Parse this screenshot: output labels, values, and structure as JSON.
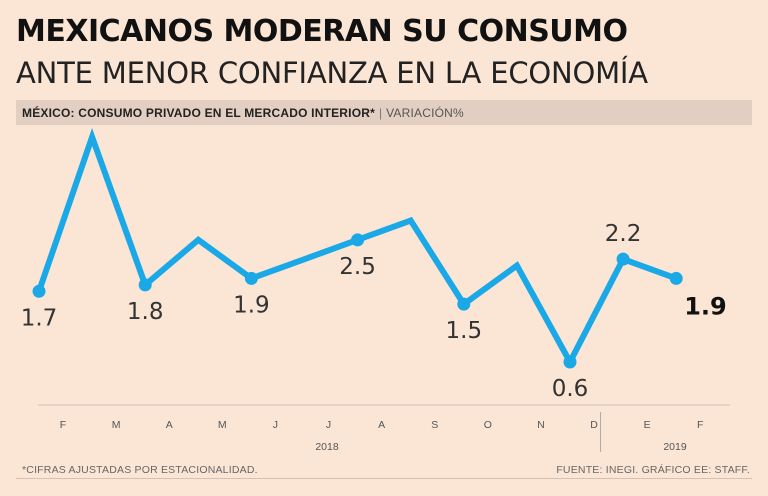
{
  "header": {
    "title": "MEXICANOS MODERAN SU CONSUMO",
    "subtitle": "ANTE MENOR CONFIANZA EN LA ECONOMÍA"
  },
  "band": {
    "main": "MÉXICO: CONSUMO PRIVADO EN EL MERCADO INTERIOR*",
    "separator": "|",
    "unit": "VARIACIÓN%"
  },
  "chart_data": {
    "type": "line",
    "title": "MÉXICO: CONSUMO PRIVADO EN EL MERCADO INTERIOR*",
    "ylabel": "VARIACIÓN%",
    "xlabel": "",
    "categories": [
      "F",
      "M",
      "A",
      "M",
      "J",
      "J",
      "A",
      "S",
      "O",
      "N",
      "D",
      "E",
      "F"
    ],
    "years": [
      {
        "label": "2018",
        "start": 0,
        "end": 10
      },
      {
        "label": "2019",
        "start": 11,
        "end": 12
      }
    ],
    "series": [
      {
        "name": "Consumo privado",
        "color": "#1aa8e6",
        "values": [
          1.7,
          4.1,
          1.8,
          2.5,
          1.9,
          2.2,
          2.5,
          2.8,
          1.5,
          2.1,
          0.6,
          2.2,
          1.9
        ]
      }
    ],
    "data_labels": [
      {
        "index": 0,
        "text": "1.7",
        "position": "below",
        "bold": false
      },
      {
        "index": 2,
        "text": "1.8",
        "position": "below",
        "bold": false
      },
      {
        "index": 4,
        "text": "1.9",
        "position": "below",
        "bold": false
      },
      {
        "index": 6,
        "text": "2.5",
        "position": "below",
        "bold": false
      },
      {
        "index": 8,
        "text": "1.5",
        "position": "below",
        "bold": false
      },
      {
        "index": 10,
        "text": "0.6",
        "position": "below",
        "bold": false
      },
      {
        "index": 11,
        "text": "2.2",
        "position": "above",
        "bold": false
      },
      {
        "index": 12,
        "text": "1.9",
        "position": "right",
        "bold": true
      }
    ],
    "markers_at": [
      0,
      2,
      4,
      6,
      8,
      10,
      11,
      12
    ],
    "ylim": [
      0.0,
      4.2
    ],
    "grid": false
  },
  "footer": {
    "note": "*CIFRAS AJUSTADAS POR ESTACIONALIDAD.",
    "source": "FUENTE: INEGI. GRÁFICO EE: STAFF."
  }
}
